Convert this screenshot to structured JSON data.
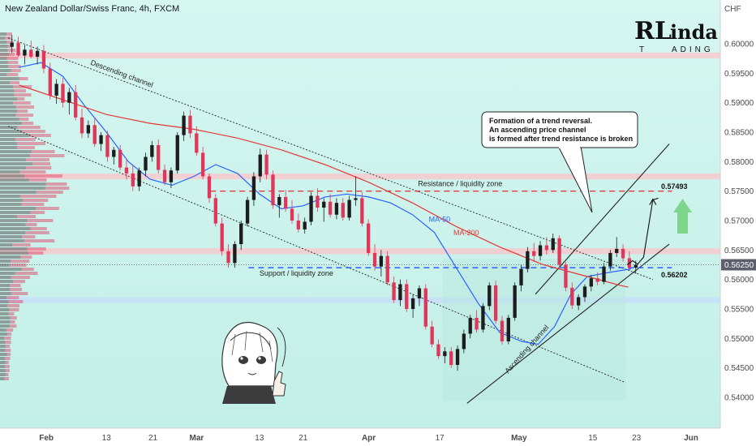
{
  "header": {
    "title": "New Zealand Dollar/Swiss Franc, 4h, FXCM",
    "currency": "CHF"
  },
  "logo": {
    "initial": "RL",
    "word_top": "inda",
    "word_bottom": "ADING",
    "t": "T"
  },
  "colors": {
    "background": "#c8f2ec",
    "bull": "#1c1c1c",
    "bear": "#e0365a",
    "ma50": "#2962ff",
    "ma200": "#e53935",
    "resistance_line": "#e53935",
    "support_line": "#2962ff",
    "zone_red": "#f7c9cf",
    "zone_blue": "#c7dff8",
    "arrow_green": "#6fd07a"
  },
  "chart_data": {
    "type": "candlestick",
    "title": "New Zealand Dollar/Swiss Franc, 4h, FXCM",
    "ylabel": "CHF",
    "ylim": [
      0.536,
      0.604
    ],
    "xlim": [
      0,
      125
    ],
    "y_ticks": [
      0.54,
      0.545,
      0.55,
      0.555,
      0.56,
      0.565,
      0.57,
      0.575,
      0.58,
      0.585,
      0.59,
      0.595,
      0.6
    ],
    "x_ticks": [
      {
        "label": "Feb",
        "x": 7
      },
      {
        "label": "13",
        "x": 18
      },
      {
        "label": "21",
        "x": 26.5
      },
      {
        "label": "Mar",
        "x": 34.5
      },
      {
        "label": "13",
        "x": 46
      },
      {
        "label": "21",
        "x": 54
      },
      {
        "label": "Apr",
        "x": 66
      },
      {
        "label": "17",
        "x": 79
      },
      {
        "label": "May",
        "x": 93.5
      },
      {
        "label": "15",
        "x": 107
      },
      {
        "label": "23",
        "x": 115
      },
      {
        "label": "Jun",
        "x": 125
      }
    ],
    "current_price": {
      "label": "0.56250",
      "value": 0.5625
    },
    "levels": [
      {
        "name": "Resistance / liquidity zone",
        "value": 0.575,
        "label_x": 75
      },
      {
        "name": "Support / liquidity zone",
        "value": 0.562,
        "label_x": 46
      }
    ],
    "targets": [
      {
        "label": "0.57493",
        "value": 0.57493,
        "x": 119.5
      },
      {
        "label": "0.56202",
        "value": 0.56202,
        "x": 119.5
      }
    ],
    "zones": [
      {
        "color": "red",
        "from": 0.5975,
        "to": 0.5985
      },
      {
        "color": "red",
        "from": 0.577,
        "to": 0.578
      },
      {
        "color": "red",
        "from": 0.5643,
        "to": 0.5653
      },
      {
        "color": "blue",
        "from": 0.556,
        "to": 0.557
      }
    ],
    "moving_averages": [
      {
        "name": "MA-50",
        "label_x": 77,
        "label_y": 0.5698,
        "points": [
          [
            2,
            0.596
          ],
          [
            6,
            0.5968
          ],
          [
            10,
            0.5945
          ],
          [
            14,
            0.5895
          ],
          [
            18,
            0.585
          ],
          [
            22,
            0.58
          ],
          [
            26,
            0.577
          ],
          [
            30,
            0.576
          ],
          [
            34,
            0.5775
          ],
          [
            38,
            0.5795
          ],
          [
            42,
            0.578
          ],
          [
            46,
            0.5745
          ],
          [
            50,
            0.572
          ],
          [
            54,
            0.5725
          ],
          [
            58,
            0.574
          ],
          [
            62,
            0.5745
          ],
          [
            66,
            0.574
          ],
          [
            70,
            0.573
          ],
          [
            74,
            0.571
          ],
          [
            78,
            0.568
          ],
          [
            82,
            0.562
          ],
          [
            86,
            0.556
          ],
          [
            90,
            0.551
          ],
          [
            94,
            0.5495
          ],
          [
            97,
            0.549
          ],
          [
            100,
            0.552
          ],
          [
            103,
            0.5575
          ],
          [
            106,
            0.5605
          ],
          [
            110,
            0.5612
          ],
          [
            114,
            0.5618
          ]
        ]
      },
      {
        "name": "MA-200",
        "label_x": 81.5,
        "label_y": 0.5675,
        "points": [
          [
            2,
            0.593
          ],
          [
            10,
            0.5905
          ],
          [
            18,
            0.588
          ],
          [
            26,
            0.5865
          ],
          [
            34,
            0.5855
          ],
          [
            42,
            0.584
          ],
          [
            50,
            0.582
          ],
          [
            58,
            0.5795
          ],
          [
            66,
            0.5765
          ],
          [
            74,
            0.573
          ],
          [
            82,
            0.569
          ],
          [
            90,
            0.5655
          ],
          [
            98,
            0.5625
          ],
          [
            106,
            0.5605
          ],
          [
            112,
            0.559
          ],
          [
            113.5,
            0.5587
          ]
        ]
      }
    ],
    "channels": [
      {
        "name": "Descending channel",
        "label_x": 15,
        "label_y": 0.5965,
        "upper": [
          [
            0,
            0.601
          ],
          [
            118,
            0.56
          ]
        ],
        "lower": [
          [
            0,
            0.586
          ],
          [
            113,
            0.5425
          ]
        ]
      },
      {
        "name": "Ascending channel",
        "label_x": 91.5,
        "label_y": 0.544,
        "upper": [
          [
            96.5,
            0.5575
          ],
          [
            121,
            0.583
          ]
        ],
        "lower": [
          [
            84,
            0.539
          ],
          [
            121,
            0.566
          ]
        ]
      }
    ],
    "callout": {
      "lines": [
        "Formation of a trend reversal.",
        "An ascending price channel",
        "is formed after trend resistance is broken"
      ],
      "pointer_to": [
        106.5,
        0.5712
      ]
    },
    "projection": [
      [
        113.3,
        0.5625
      ],
      [
        114.3,
        0.5632
      ],
      [
        115.2,
        0.5626
      ],
      [
        116.3,
        0.5638
      ],
      [
        118,
        0.5735
      ],
      [
        119,
        0.5738
      ]
    ],
    "candles": [
      [
        0.5995,
        0.6015,
        0.5985,
        0.6002
      ],
      [
        0.6002,
        0.6012,
        0.5978,
        0.598
      ],
      [
        0.598,
        0.5998,
        0.5965,
        0.599
      ],
      [
        0.599,
        0.6005,
        0.5975,
        0.5978
      ],
      [
        0.5978,
        0.5995,
        0.5965,
        0.5988
      ],
      [
        0.5988,
        0.5998,
        0.595,
        0.5958
      ],
      [
        0.5958,
        0.5968,
        0.5905,
        0.5912
      ],
      [
        0.5912,
        0.594,
        0.5898,
        0.5932
      ],
      [
        0.5932,
        0.5942,
        0.5892,
        0.59
      ],
      [
        0.59,
        0.5925,
        0.588,
        0.5918
      ],
      [
        0.5918,
        0.593,
        0.587,
        0.5875
      ],
      [
        0.5875,
        0.589,
        0.584,
        0.5848
      ],
      [
        0.5848,
        0.587,
        0.584,
        0.5862
      ],
      [
        0.5862,
        0.5875,
        0.5825,
        0.583
      ],
      [
        0.583,
        0.585,
        0.5818,
        0.5845
      ],
      [
        0.5845,
        0.5852,
        0.58,
        0.5808
      ],
      [
        0.5808,
        0.5825,
        0.5795,
        0.582
      ],
      [
        0.582,
        0.5828,
        0.5785,
        0.579
      ],
      [
        0.579,
        0.5805,
        0.577,
        0.578
      ],
      [
        0.578,
        0.5795,
        0.575,
        0.5758
      ],
      [
        0.5758,
        0.579,
        0.575,
        0.5785
      ],
      [
        0.5785,
        0.5815,
        0.5775,
        0.5808
      ],
      [
        0.5808,
        0.5835,
        0.58,
        0.5828
      ],
      [
        0.5828,
        0.5838,
        0.578,
        0.5786
      ],
      [
        0.5786,
        0.5795,
        0.576,
        0.5765
      ],
      [
        0.5765,
        0.579,
        0.5755,
        0.5785
      ],
      [
        0.5785,
        0.585,
        0.578,
        0.5845
      ],
      [
        0.5845,
        0.5885,
        0.5835,
        0.5878
      ],
      [
        0.5878,
        0.5888,
        0.584,
        0.5848
      ],
      [
        0.5848,
        0.586,
        0.581,
        0.5815
      ],
      [
        0.5815,
        0.5825,
        0.577,
        0.5775
      ],
      [
        0.5775,
        0.578,
        0.573,
        0.5738
      ],
      [
        0.5738,
        0.5745,
        0.569,
        0.5695
      ],
      [
        0.5695,
        0.5705,
        0.564,
        0.5648
      ],
      [
        0.5648,
        0.566,
        0.562,
        0.5628
      ],
      [
        0.5628,
        0.5665,
        0.562,
        0.566
      ],
      [
        0.566,
        0.57,
        0.565,
        0.5695
      ],
      [
        0.5695,
        0.574,
        0.569,
        0.5735
      ],
      [
        0.5735,
        0.5782,
        0.5725,
        0.5775
      ],
      [
        0.5775,
        0.5822,
        0.5765,
        0.5812
      ],
      [
        0.5812,
        0.582,
        0.577,
        0.5778
      ],
      [
        0.5778,
        0.5785,
        0.572,
        0.5726
      ],
      [
        0.5726,
        0.5745,
        0.5705,
        0.574
      ],
      [
        0.574,
        0.5752,
        0.5715,
        0.572
      ],
      [
        0.572,
        0.5735,
        0.5695,
        0.57
      ],
      [
        0.57,
        0.5712,
        0.568,
        0.5685
      ],
      [
        0.5685,
        0.5705,
        0.5678,
        0.5698
      ],
      [
        0.5698,
        0.5748,
        0.5692,
        0.5742
      ],
      [
        0.5742,
        0.5755,
        0.5715,
        0.5722
      ],
      [
        0.5722,
        0.5738,
        0.5698,
        0.5732
      ],
      [
        0.5732,
        0.5745,
        0.5705,
        0.571
      ],
      [
        0.571,
        0.5738,
        0.5702,
        0.573
      ],
      [
        0.573,
        0.5738,
        0.57,
        0.5705
      ],
      [
        0.5705,
        0.5742,
        0.57,
        0.5735
      ],
      [
        0.5735,
        0.5775,
        0.5725,
        0.5738
      ],
      [
        0.5738,
        0.5748,
        0.569,
        0.5695
      ],
      [
        0.5695,
        0.5702,
        0.564,
        0.5645
      ],
      [
        0.5645,
        0.566,
        0.5615,
        0.5622
      ],
      [
        0.5622,
        0.565,
        0.5605,
        0.564
      ],
      [
        0.564,
        0.5648,
        0.559,
        0.5595
      ],
      [
        0.5595,
        0.5605,
        0.556,
        0.5565
      ],
      [
        0.5565,
        0.56,
        0.5555,
        0.5592
      ],
      [
        0.5592,
        0.56,
        0.5545,
        0.555
      ],
      [
        0.555,
        0.5575,
        0.5535,
        0.5568
      ],
      [
        0.5568,
        0.559,
        0.5555,
        0.5585
      ],
      [
        0.5585,
        0.5592,
        0.5515,
        0.552
      ],
      [
        0.552,
        0.553,
        0.5485,
        0.549
      ],
      [
        0.549,
        0.5498,
        0.5465,
        0.547
      ],
      [
        0.547,
        0.5485,
        0.5458,
        0.5478
      ],
      [
        0.5478,
        0.5485,
        0.545,
        0.5455
      ],
      [
        0.5455,
        0.5488,
        0.5445,
        0.5482
      ],
      [
        0.5482,
        0.5515,
        0.5475,
        0.5508
      ],
      [
        0.5508,
        0.554,
        0.55,
        0.5535
      ],
      [
        0.5535,
        0.5548,
        0.551,
        0.5515
      ],
      [
        0.5515,
        0.556,
        0.551,
        0.5555
      ],
      [
        0.5555,
        0.5595,
        0.5548,
        0.559
      ],
      [
        0.559,
        0.5598,
        0.5525,
        0.553
      ],
      [
        0.553,
        0.5538,
        0.549,
        0.5495
      ],
      [
        0.5495,
        0.554,
        0.549,
        0.5535
      ],
      [
        0.5535,
        0.5595,
        0.553,
        0.559
      ],
      [
        0.559,
        0.5625,
        0.558,
        0.5618
      ],
      [
        0.5618,
        0.5655,
        0.5612,
        0.5648
      ],
      [
        0.5648,
        0.5662,
        0.563,
        0.564
      ],
      [
        0.564,
        0.5665,
        0.5632,
        0.5658
      ],
      [
        0.5658,
        0.5672,
        0.5642,
        0.565
      ],
      [
        0.565,
        0.5678,
        0.5645,
        0.567
      ],
      [
        0.567,
        0.5675,
        0.562,
        0.5625
      ],
      [
        0.5625,
        0.563,
        0.558,
        0.5586
      ],
      [
        0.5586,
        0.5595,
        0.555,
        0.5556
      ],
      [
        0.5556,
        0.5575,
        0.5548,
        0.557
      ],
      [
        0.557,
        0.5592,
        0.5562,
        0.5588
      ],
      [
        0.5588,
        0.5608,
        0.558,
        0.5602
      ],
      [
        0.5602,
        0.5612,
        0.559,
        0.5596
      ],
      [
        0.5596,
        0.5628,
        0.5592,
        0.5622
      ],
      [
        0.5622,
        0.565,
        0.5615,
        0.5645
      ],
      [
        0.5645,
        0.5672,
        0.5638,
        0.5652
      ],
      [
        0.5652,
        0.566,
        0.563,
        0.5636
      ],
      [
        0.5636,
        0.5648,
        0.5615,
        0.562
      ],
      [
        0.562,
        0.5632,
        0.561,
        0.5625
      ]
    ],
    "candle_x": {
      "start": 0.7,
      "step": 1.165
    }
  }
}
